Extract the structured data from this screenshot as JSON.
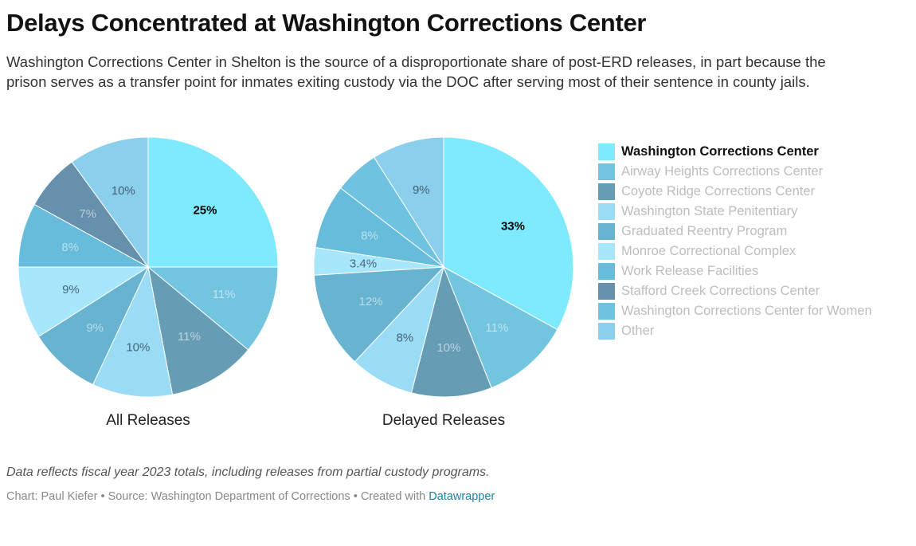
{
  "header": {
    "title": "Delays Concentrated at Washington Corrections Center",
    "subtitle": "Washington Corrections Center in Shelton is the source of a disproportionate share of post-ERD releases, in part because the prison serves as a transfer point for inmates exiting custody via the DOC after serving most of their sentence in county jails."
  },
  "chart_data": {
    "type": "pie",
    "categories": [
      "Washington Corrections Center",
      "Airway Heights Corrections Center",
      "Coyote Ridge Corrections Center",
      "Washington State Penitentiary",
      "Graduated Reentry Program",
      "Monroe Correctional Complex",
      "Work Release Facilities",
      "Stafford Creek Corrections Center",
      "Washington Corrections Center for Women",
      "Other"
    ],
    "colors": [
      "#7fe9fd",
      "#72c4df",
      "#669db5",
      "#9adbf6",
      "#67b3d0",
      "#a7e6fb",
      "#66bcda",
      "#6690ab",
      "#6fc3e0",
      "#8ccfec"
    ],
    "highlight": "Washington Corrections Center",
    "series": [
      {
        "name": "All Releases",
        "values": [
          25,
          11,
          11,
          10,
          9,
          9,
          8,
          7,
          0,
          10
        ],
        "labels": [
          "25%",
          "11%",
          "11%",
          "10%",
          "9%",
          "9%",
          "8%",
          "7%",
          "",
          "10%"
        ]
      },
      {
        "name": "Delayed Releases",
        "values": [
          33,
          11,
          10,
          8,
          12,
          3.4,
          8,
          0,
          5.6,
          9
        ],
        "labels": [
          "33%",
          "11%",
          "10%",
          "8%",
          "12%",
          "3.4%",
          "8%",
          "",
          "",
          "9%"
        ]
      }
    ],
    "legend_position": "right"
  },
  "legend": {
    "items": [
      "Washington Corrections Center",
      "Airway Heights Corrections Center",
      "Coyote Ridge Corrections Center",
      "Washington State Penitentiary",
      "Graduated Reentry Program",
      "Monroe Correctional Complex",
      "Work Release Facilities",
      "Stafford Creek Corrections Center",
      "Washington Corrections Center for Women",
      "Other"
    ]
  },
  "footer": {
    "notes": "Data reflects fiscal year 2023 totals, including releases from partial custody programs.",
    "credit_prefix": "Chart: Paul Kiefer • Source: Washington Department of Corrections • Created with ",
    "credit_link": "Datawrapper"
  }
}
